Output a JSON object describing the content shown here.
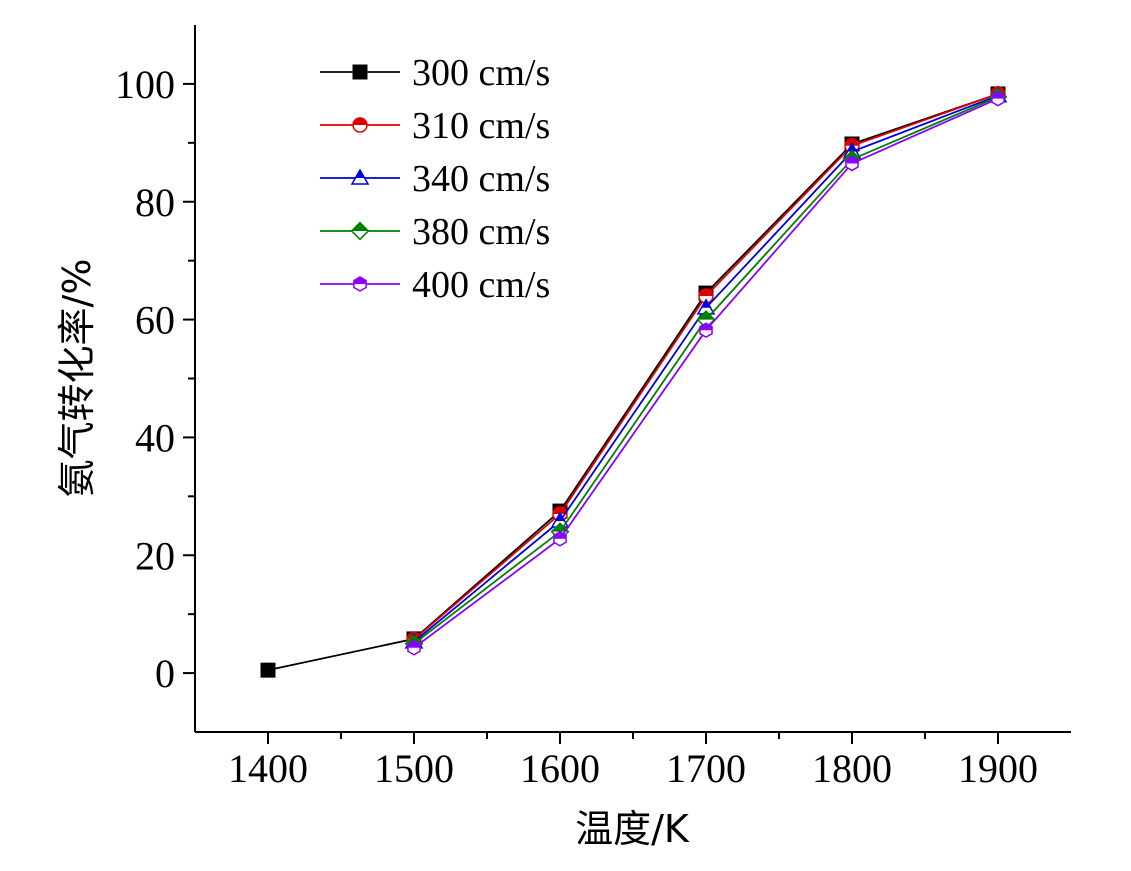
{
  "chart_data": {
    "type": "line",
    "title": "",
    "xlabel": "温度/K",
    "ylabel": "氨气转化率/%",
    "xlim": [
      1350,
      1950
    ],
    "ylim": [
      -10,
      110
    ],
    "xticks": [
      1400,
      1500,
      1600,
      1700,
      1800,
      1900
    ],
    "yticks": [
      0,
      20,
      40,
      60,
      80,
      100
    ],
    "grid": false,
    "legend_position": "top-left",
    "series": [
      {
        "name": "300 cm/s",
        "color": "#000000",
        "marker": "square",
        "x": [
          1400,
          1500,
          1600,
          1700,
          1800,
          1900
        ],
        "y": [
          0.5,
          5.8,
          27.5,
          64.5,
          89.8,
          98.3
        ]
      },
      {
        "name": "310 cm/s",
        "color": "#e00000",
        "marker": "circle-half",
        "x": [
          1500,
          1600,
          1700,
          1800,
          1900
        ],
        "y": [
          5.7,
          27.0,
          64.0,
          89.5,
          98.3
        ]
      },
      {
        "name": "340 cm/s",
        "color": "#0000e0",
        "marker": "triangle-half",
        "x": [
          1500,
          1600,
          1700,
          1800,
          1900
        ],
        "y": [
          5.3,
          25.8,
          62.0,
          88.5,
          98.0
        ]
      },
      {
        "name": "380 cm/s",
        "color": "#008000",
        "marker": "diamond-half",
        "x": [
          1500,
          1600,
          1700,
          1800,
          1900
        ],
        "y": [
          5.0,
          24.0,
          60.0,
          87.2,
          97.8
        ]
      },
      {
        "name": "400 cm/s",
        "color": "#8b00ff",
        "marker": "hexagon-half",
        "x": [
          1500,
          1600,
          1700,
          1800,
          1900
        ],
        "y": [
          4.3,
          22.8,
          58.2,
          86.5,
          97.5
        ]
      }
    ]
  }
}
